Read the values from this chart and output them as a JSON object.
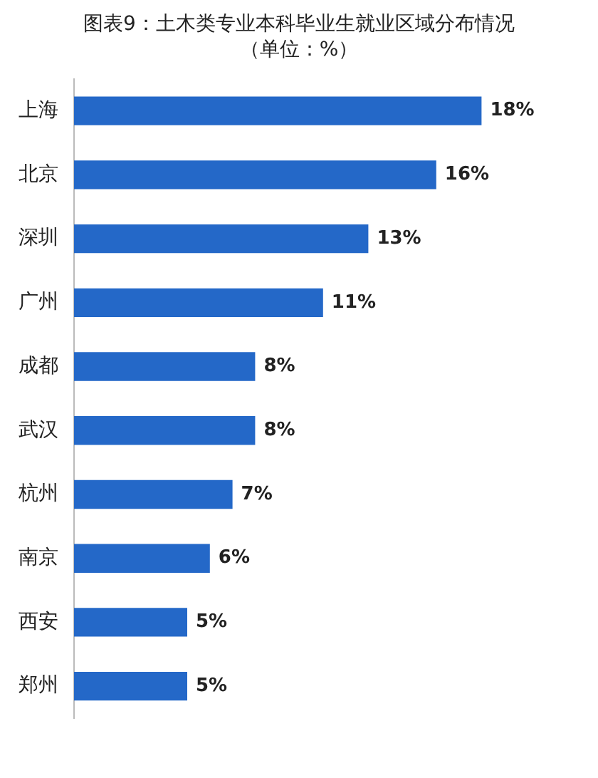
{
  "chart_data": {
    "type": "bar",
    "orientation": "horizontal",
    "title": "图表9：土木类专业本科毕业生就业区域分布情况",
    "subtitle": "（单位：%）",
    "categories": [
      "上海",
      "北京",
      "深圳",
      "广州",
      "成都",
      "武汉",
      "杭州",
      "南京",
      "西安",
      "郑州"
    ],
    "values": [
      18,
      16,
      13,
      11,
      8,
      8,
      7,
      6,
      5,
      5
    ],
    "value_labels": [
      "18%",
      "16%",
      "13%",
      "11%",
      "8%",
      "8%",
      "7%",
      "6%",
      "5%",
      "5%"
    ],
    "color": "#2468c8"
  }
}
